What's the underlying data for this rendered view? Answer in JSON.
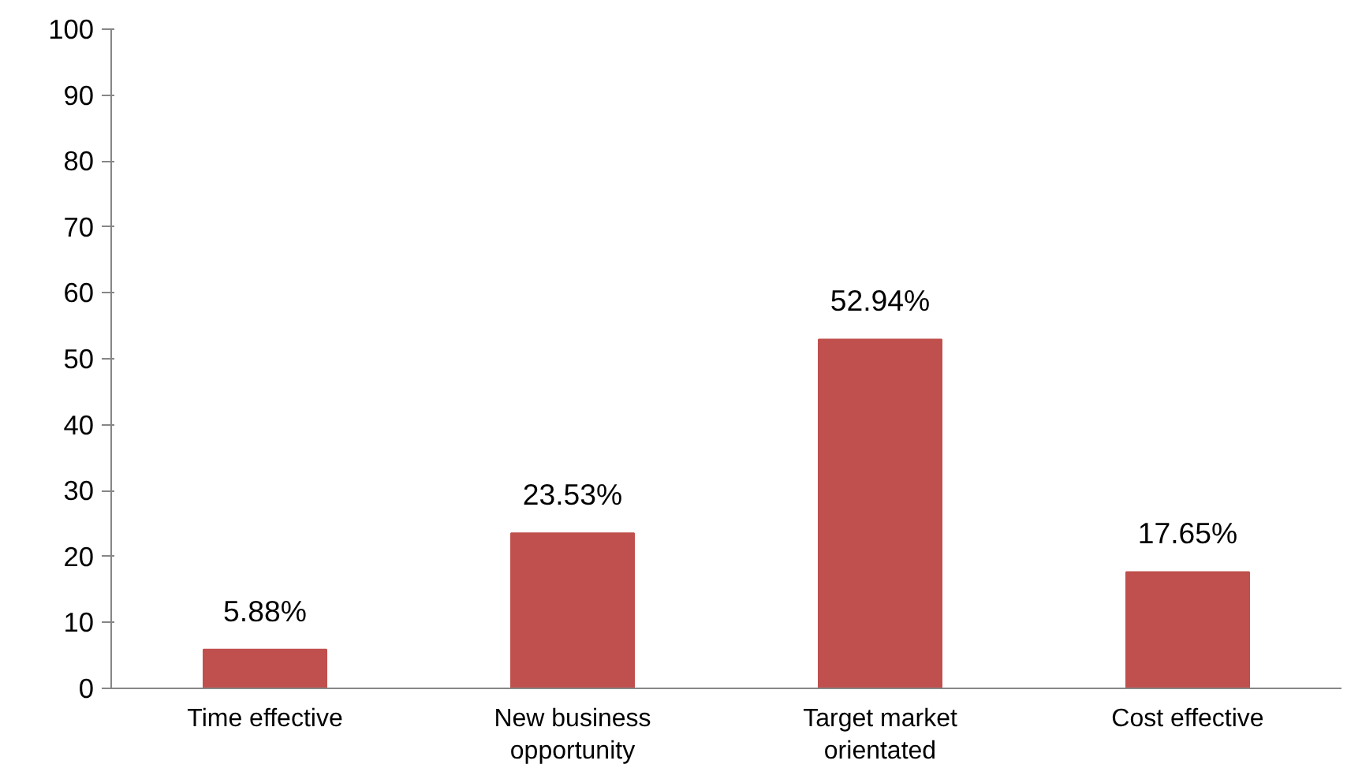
{
  "chart_data": {
    "type": "bar",
    "categories": [
      "Time effective",
      "New business opportunity",
      "Target market orientated",
      "Cost effective"
    ],
    "values": [
      5.88,
      23.53,
      52.94,
      17.65
    ],
    "value_labels": [
      "5.88%",
      "23.53%",
      "52.94%",
      "17.65%"
    ],
    "color": "#c0504d",
    "ylim": [
      0,
      100
    ],
    "yticks": [
      0,
      10,
      20,
      30,
      40,
      50,
      60,
      70,
      80,
      90,
      100
    ]
  }
}
